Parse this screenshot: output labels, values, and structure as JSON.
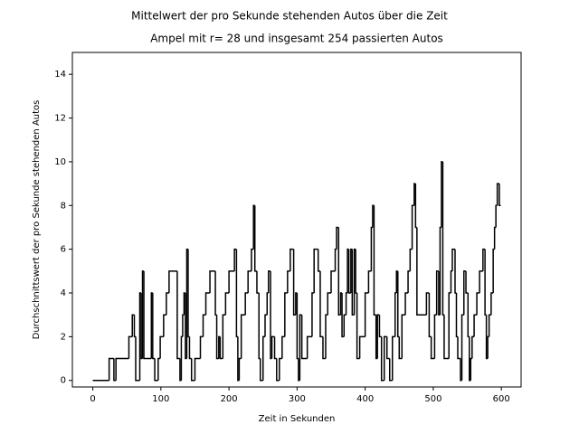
{
  "chart_data": {
    "type": "step",
    "title": "Mittelwert der pro Sekunde stehenden Autos über die Zeit",
    "subtitle": "Ampel mit r= 28 und insgesamt 254 passierten Autos",
    "x_label": "Zeit in Sekunden",
    "y_label": "Durchschnittswert der pro Sekunde stehenden Autos",
    "color": "#000000",
    "xlim": [
      -30,
      629
    ],
    "ylim": [
      -0.3,
      15
    ],
    "xticks": [
      0,
      100,
      200,
      300,
      400,
      500,
      600
    ],
    "yticks": [
      0,
      2,
      4,
      6,
      8,
      10,
      12,
      14
    ],
    "x": [
      0,
      24,
      31,
      34,
      53,
      58,
      61,
      63,
      69,
      71,
      73,
      75,
      86,
      88,
      91,
      96,
      99,
      104,
      108,
      112,
      124,
      128,
      130,
      132,
      134,
      136,
      138,
      140,
      142,
      145,
      150,
      158,
      162,
      166,
      172,
      180,
      182,
      185,
      187,
      191,
      195,
      200,
      208,
      211,
      213,
      215,
      218,
      224,
      228,
      233,
      236,
      238,
      241,
      244,
      246,
      250,
      253,
      256,
      258,
      261,
      263,
      267,
      270,
      274,
      278,
      282,
      286,
      290,
      295,
      298,
      300,
      302,
      304,
      307,
      315,
      322,
      325,
      331,
      334,
      338,
      342,
      345,
      350,
      356,
      358,
      361,
      364,
      366,
      369,
      372,
      374,
      376,
      379,
      381,
      384,
      386,
      388,
      392,
      400,
      405,
      409,
      411,
      413,
      416,
      418,
      421,
      424,
      428,
      432,
      436,
      440,
      444,
      446,
      448,
      450,
      454,
      459,
      463,
      466,
      469,
      472,
      474,
      476,
      490,
      494,
      497,
      502,
      505,
      508,
      510,
      512,
      514,
      516,
      523,
      526,
      528,
      532,
      534,
      536,
      540,
      542,
      545,
      548,
      551,
      553,
      555,
      557,
      560,
      564,
      568,
      573,
      576,
      578,
      580,
      582,
      585,
      588,
      590,
      592,
      594,
      597,
      599
    ],
    "values": [
      0,
      1,
      0,
      1,
      2,
      3,
      2,
      0,
      4,
      1,
      5,
      1,
      4,
      1,
      0,
      1,
      2,
      3,
      4,
      5,
      1,
      0,
      2,
      3,
      4,
      1,
      6,
      2,
      1,
      0,
      1,
      2,
      3,
      4,
      5,
      3,
      1,
      2,
      1,
      3,
      4,
      5,
      6,
      2,
      0,
      1,
      3,
      4,
      5,
      6,
      8,
      5,
      4,
      1,
      0,
      2,
      3,
      4,
      5,
      1,
      2,
      1,
      0,
      1,
      2,
      4,
      5,
      6,
      3,
      4,
      1,
      0,
      3,
      1,
      2,
      4,
      6,
      5,
      2,
      1,
      3,
      4,
      5,
      6,
      7,
      3,
      4,
      2,
      3,
      4,
      6,
      4,
      6,
      3,
      6,
      4,
      1,
      2,
      4,
      5,
      7,
      8,
      3,
      1,
      3,
      2,
      0,
      2,
      1,
      0,
      2,
      4,
      5,
      2,
      1,
      3,
      4,
      5,
      6,
      8,
      9,
      7,
      3,
      4,
      2,
      1,
      3,
      5,
      3,
      7,
      10,
      3,
      1,
      4,
      5,
      6,
      4,
      2,
      1,
      0,
      3,
      5,
      4,
      2,
      0,
      1,
      2,
      3,
      4,
      5,
      6,
      3,
      1,
      2,
      3,
      4,
      6,
      7,
      8,
      9,
      8,
      8
    ]
  }
}
